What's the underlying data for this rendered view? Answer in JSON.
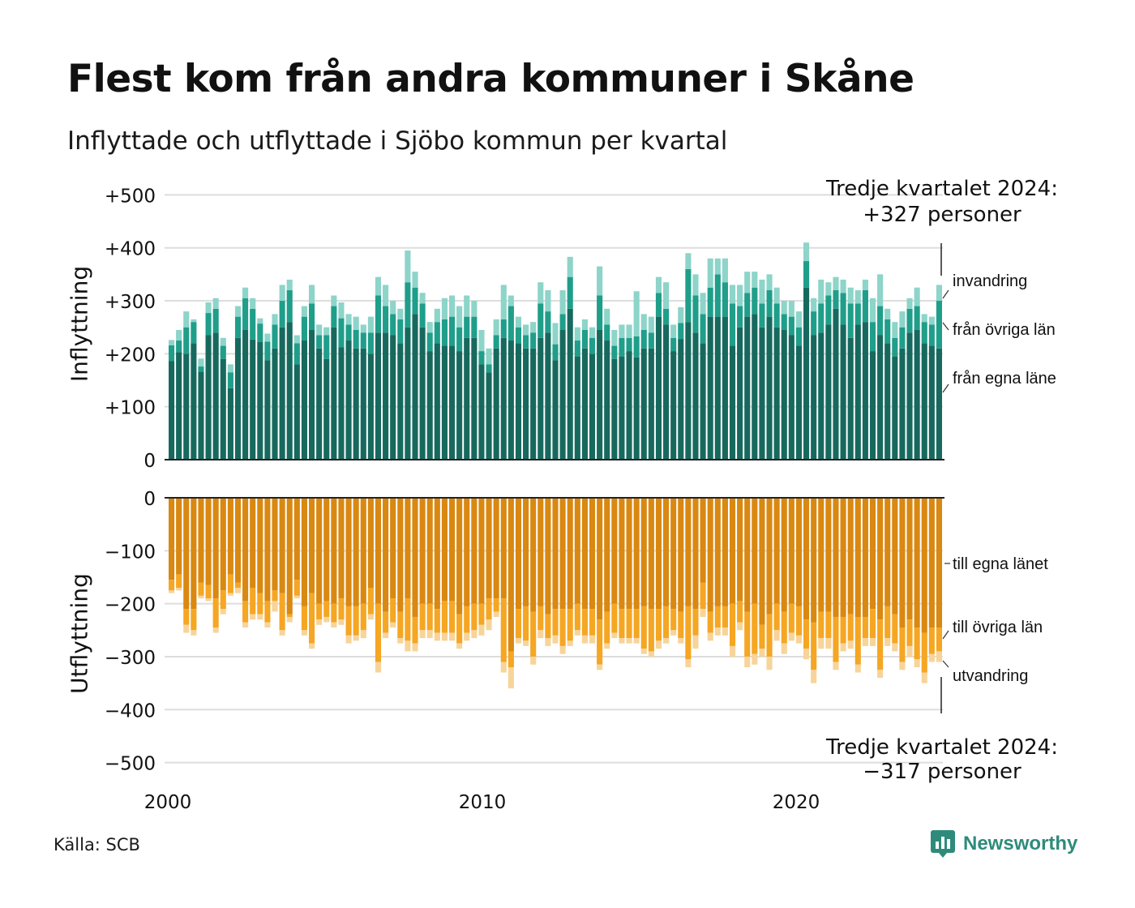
{
  "title": "Flest kom från andra kommuner i Skåne",
  "subtitle": "Inflyttade och utflyttade i Sjöbo kommun per kvartal",
  "source": "Källa: SCB",
  "brand": "Newsworthy",
  "colors": {
    "in_own": "#17695e",
    "in_other": "#1f9e8a",
    "in_immig": "#8dd4c9",
    "out_own": "#d98811",
    "out_other": "#f5a623",
    "out_emig": "#f7d49a",
    "grid": "#dddddd",
    "brand": "#2e8b7c"
  },
  "chart_data": [
    {
      "type": "bar",
      "stacked": true,
      "panel": "Inflyttning",
      "ylabel": "Inflyttning",
      "ylim": [
        0,
        500
      ],
      "yticks": [
        "0",
        "+100",
        "+200",
        "+300",
        "+400",
        "+500"
      ],
      "yticks_values": [
        0,
        100,
        200,
        300,
        400,
        500
      ],
      "xticks": [
        "2000",
        "2010",
        "2020"
      ],
      "x_start": "2000 Q1",
      "x_end": "2024 Q3",
      "annotation": [
        "Tredje kvartalet 2024:",
        "+327 personer"
      ],
      "series": [
        {
          "name": "från egna läne",
          "values": [
            186,
            203,
            200,
            220,
            166,
            235,
            240,
            190,
            135,
            230,
            245,
            227,
            222,
            188,
            210,
            250,
            260,
            180,
            225,
            245,
            210,
            190,
            250,
            212,
            225,
            210,
            210,
            200,
            240,
            240,
            235,
            220,
            250,
            275,
            250,
            205,
            220,
            215,
            215,
            205,
            230,
            230,
            180,
            165,
            210,
            230,
            225,
            220,
            210,
            210,
            230,
            240,
            188,
            245,
            285,
            195,
            210,
            200,
            245,
            225,
            190,
            195,
            205,
            193,
            210,
            210,
            270,
            255,
            205,
            228,
            260,
            240,
            220,
            270,
            270,
            270,
            215,
            250,
            270,
            275,
            250,
            270,
            250,
            245,
            235,
            215,
            325,
            235,
            240,
            255,
            285,
            255,
            230,
            255,
            260,
            205,
            235,
            220,
            195,
            210,
            240,
            245,
            220,
            215,
            210
          ]
        },
        {
          "name": "från övriga län",
          "values": [
            30,
            22,
            50,
            40,
            10,
            42,
            45,
            25,
            30,
            40,
            60,
            58,
            35,
            35,
            45,
            50,
            60,
            40,
            45,
            50,
            25,
            45,
            40,
            55,
            30,
            35,
            30,
            40,
            70,
            50,
            40,
            45,
            85,
            50,
            45,
            35,
            40,
            50,
            55,
            45,
            40,
            40,
            25,
            15,
            25,
            35,
            65,
            30,
            25,
            30,
            65,
            40,
            30,
            30,
            60,
            30,
            35,
            30,
            65,
            30,
            25,
            35,
            25,
            40,
            35,
            30,
            45,
            30,
            25,
            30,
            100,
            70,
            55,
            55,
            80,
            65,
            80,
            40,
            45,
            50,
            45,
            50,
            45,
            30,
            35,
            35,
            50,
            45,
            55,
            55,
            35,
            60,
            65,
            40,
            60,
            55,
            55,
            45,
            35,
            40,
            45,
            45,
            40,
            40,
            90
          ]
        },
        {
          "name": "invandring",
          "values": [
            10,
            20,
            30,
            5,
            15,
            20,
            20,
            15,
            15,
            20,
            20,
            20,
            10,
            15,
            20,
            30,
            20,
            15,
            20,
            35,
            20,
            15,
            20,
            30,
            20,
            25,
            15,
            30,
            35,
            40,
            25,
            20,
            60,
            30,
            20,
            20,
            25,
            40,
            40,
            40,
            40,
            30,
            40,
            30,
            30,
            65,
            20,
            20,
            20,
            20,
            40,
            40,
            40,
            45,
            38,
            25,
            20,
            20,
            55,
            30,
            30,
            25,
            25,
            85,
            30,
            30,
            30,
            50,
            25,
            30,
            30,
            40,
            40,
            55,
            30,
            45,
            35,
            40,
            40,
            30,
            45,
            30,
            30,
            25,
            30,
            30,
            35,
            25,
            45,
            25,
            25,
            25,
            30,
            25,
            20,
            45,
            60,
            20,
            30,
            30,
            20,
            35,
            15,
            15,
            30
          ]
        }
      ]
    },
    {
      "type": "bar",
      "stacked": true,
      "panel": "Utflyttning",
      "ylabel": "Utflyttning",
      "ylim": [
        -500,
        0
      ],
      "yticks": [
        "0",
        "−100",
        "−200",
        "−300",
        "−400",
        "−500"
      ],
      "yticks_values": [
        0,
        -100,
        -200,
        -300,
        -400,
        -500
      ],
      "xticks": [
        "2000",
        "2010",
        "2020"
      ],
      "x_start": "2000 Q1",
      "x_end": "2024 Q3",
      "annotation": [
        "Tredje kvartalet 2024:",
        "−317 personer"
      ],
      "series": [
        {
          "name": "till egna länet",
          "values": [
            -155,
            -145,
            -210,
            -210,
            -160,
            -165,
            -190,
            -175,
            -145,
            -160,
            -195,
            -170,
            -180,
            -195,
            -175,
            -180,
            -220,
            -155,
            -205,
            -180,
            -200,
            -195,
            -200,
            -190,
            -205,
            -205,
            -200,
            -170,
            -200,
            -215,
            -190,
            -215,
            -190,
            -225,
            -200,
            -200,
            -210,
            -195,
            -195,
            -220,
            -205,
            -200,
            -200,
            -190,
            -190,
            -190,
            -290,
            -210,
            -205,
            -215,
            -205,
            -220,
            -210,
            -210,
            -210,
            -200,
            -210,
            -210,
            -230,
            -215,
            -200,
            -210,
            -210,
            -210,
            -205,
            -210,
            -210,
            -205,
            -210,
            -215,
            -205,
            -210,
            -160,
            -215,
            -205,
            -205,
            -200,
            -195,
            -215,
            -200,
            -240,
            -220,
            -200,
            -215,
            -200,
            -205,
            -230,
            -235,
            -215,
            -215,
            -225,
            -225,
            -220,
            -225,
            -225,
            -210,
            -230,
            -205,
            -220,
            -245,
            -230,
            -245,
            -255,
            -245,
            -245
          ]
        },
        {
          "name": "till övriga län",
          "values": [
            -20,
            -25,
            -30,
            -40,
            -25,
            -25,
            -55,
            -35,
            -35,
            -10,
            -40,
            -50,
            -40,
            -40,
            -20,
            -70,
            -5,
            -30,
            -45,
            -95,
            -30,
            -30,
            -35,
            -40,
            -55,
            -55,
            -50,
            -50,
            -110,
            -40,
            -45,
            -50,
            -80,
            -50,
            -50,
            -50,
            -45,
            -60,
            -60,
            -55,
            -50,
            -50,
            -40,
            -40,
            -25,
            -120,
            -30,
            -55,
            -65,
            -85,
            -45,
            -45,
            -50,
            -70,
            -60,
            -50,
            -50,
            -50,
            -85,
            -60,
            -55,
            -55,
            -55,
            -55,
            -80,
            -80,
            -60,
            -60,
            -40,
            -50,
            -100,
            -50,
            -50,
            -40,
            -40,
            -40,
            -80,
            -40,
            -85,
            -95,
            -45,
            -80,
            -50,
            -60,
            -55,
            -55,
            -55,
            -90,
            -50,
            -50,
            -85,
            -50,
            -50,
            -90,
            -40,
            -55,
            -95,
            -60,
            -55,
            -65,
            -50,
            -60,
            -75,
            -50,
            -45
          ]
        },
        {
          "name": "utvandring",
          "values": [
            -5,
            -5,
            -15,
            -10,
            -5,
            -5,
            -10,
            -10,
            -5,
            -10,
            -10,
            -10,
            -10,
            -10,
            -20,
            -10,
            -10,
            -5,
            -10,
            -10,
            -10,
            -10,
            -10,
            -10,
            -15,
            -10,
            -15,
            -10,
            -20,
            -10,
            -10,
            -10,
            -20,
            -15,
            -15,
            -15,
            -15,
            -15,
            -15,
            -10,
            -15,
            -15,
            -20,
            -20,
            -10,
            -20,
            -40,
            -10,
            -10,
            -15,
            -15,
            -15,
            -15,
            -15,
            -10,
            -10,
            -15,
            -15,
            -10,
            -10,
            -10,
            -10,
            -10,
            -10,
            -10,
            -10,
            -15,
            -10,
            -10,
            -10,
            -15,
            -25,
            -15,
            -15,
            -15,
            -15,
            -20,
            -15,
            -20,
            -20,
            -15,
            -25,
            -20,
            -20,
            -15,
            -15,
            -20,
            -25,
            -20,
            -20,
            -15,
            -15,
            -15,
            -15,
            -15,
            -15,
            -15,
            -15,
            -15,
            -15,
            -20,
            -15,
            -20,
            -15,
            -20
          ]
        }
      ]
    }
  ]
}
